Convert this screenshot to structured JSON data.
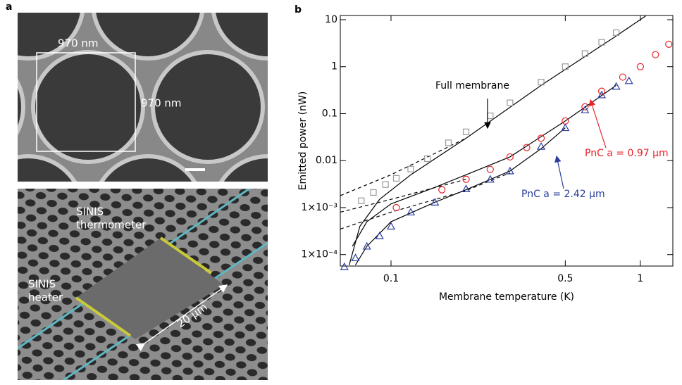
{
  "panel_labels": [
    "a",
    "b"
  ],
  "sem": {
    "width_label": "970 nm",
    "height_label": "970 nm",
    "thermometer": [
      "SINIS",
      "thermometer"
    ],
    "heater": [
      "SINIS",
      "heater"
    ],
    "length_label": "20 µm"
  },
  "chart_data": {
    "type": "scatter",
    "xlabel": "Membrane temperature (K)",
    "ylabel": "Emitted power (nW)",
    "log_x": true,
    "log_y": true,
    "xlim": [
      0.0626,
      1.35
    ],
    "ylim": [
      5.7e-05,
      12.3
    ],
    "xticks": [
      0.1,
      0.5,
      1
    ],
    "yticks": [
      {
        "value": 0.0001,
        "label": "1×10⁻⁴"
      },
      {
        "value": 0.001,
        "label": "1×10⁻³"
      },
      0.01,
      0.1,
      1,
      10
    ],
    "series": [
      {
        "marker": "square",
        "color": "#999999",
        "x": [
          0.076,
          0.085,
          0.095,
          0.105,
          0.12,
          0.14,
          0.17,
          0.2,
          0.25,
          0.3,
          0.4,
          0.5,
          0.6,
          0.7,
          0.8
        ],
        "values": [
          0.0014,
          0.0021,
          0.0031,
          0.0042,
          0.0066,
          0.011,
          0.024,
          0.041,
          0.09,
          0.17,
          0.47,
          1.0,
          1.9,
          3.3,
          5.3
        ]
      },
      {
        "marker": "circle",
        "color": "#e8222a",
        "x": [
          0.105,
          0.16,
          0.2,
          0.25,
          0.3,
          0.35,
          0.4,
          0.5,
          0.6,
          0.7,
          0.85,
          1.0,
          1.15,
          1.3
        ],
        "values": [
          0.001,
          0.0024,
          0.004,
          0.0065,
          0.012,
          0.019,
          0.03,
          0.07,
          0.14,
          0.3,
          0.6,
          1.0,
          1.8,
          3.0
        ]
      },
      {
        "marker": "triangle",
        "color": "#2b3d9e",
        "x": [
          0.065,
          0.072,
          0.08,
          0.09,
          0.1,
          0.12,
          0.15,
          0.2,
          0.25,
          0.3,
          0.4,
          0.5,
          0.6,
          0.7,
          0.8,
          0.9
        ],
        "values": [
          5.5e-05,
          8.5e-05,
          0.00015,
          0.00025,
          0.0004,
          0.0008,
          0.0013,
          0.0025,
          0.004,
          0.006,
          0.02,
          0.05,
          0.12,
          0.25,
          0.38,
          0.5
        ]
      }
    ],
    "fits": [
      {
        "style": "solid",
        "color": "#000000",
        "x": [
          0.068,
          0.075,
          0.09,
          0.12,
          0.2,
          0.4,
          0.8,
          1.05
        ],
        "values": [
          6e-05,
          0.0004,
          0.0015,
          0.005,
          0.03,
          0.4,
          4.5,
          12
        ]
      },
      {
        "style": "solid",
        "color": "#000000",
        "x": [
          0.07,
          0.08,
          0.1,
          0.15,
          0.2,
          0.3,
          0.5,
          0.8
        ],
        "values": [
          0.00015,
          0.0005,
          0.0012,
          0.0027,
          0.005,
          0.012,
          0.07,
          0.4
        ]
      },
      {
        "style": "solid",
        "color": "#000000",
        "x": [
          0.072,
          0.08,
          0.1,
          0.15,
          0.2,
          0.3,
          0.4,
          0.5
        ],
        "values": [
          6e-05,
          0.00015,
          0.0005,
          0.0013,
          0.0024,
          0.006,
          0.018,
          0.05
        ]
      },
      {
        "style": "dashed",
        "color": "#000000",
        "x": [
          0.0626,
          0.1,
          0.2
        ],
        "values": [
          0.0018,
          0.005,
          0.03
        ]
      },
      {
        "style": "dashed",
        "color": "#000000",
        "x": [
          0.0626,
          0.1,
          0.2
        ],
        "values": [
          0.0008,
          0.0015,
          0.004
        ]
      },
      {
        "style": "dashed",
        "color": "#000000",
        "x": [
          0.0626,
          0.1,
          0.2,
          0.3
        ],
        "values": [
          0.00035,
          0.0008,
          0.0023,
          0.0055
        ]
      }
    ],
    "annotations": [
      {
        "text": "Full membrane",
        "color": "#000000"
      },
      {
        "text": "PnC a = 0.97 µm",
        "color": "#e8222a"
      },
      {
        "text": "PnC a = 2.42 µm",
        "color": "#2b3d9e"
      }
    ]
  }
}
